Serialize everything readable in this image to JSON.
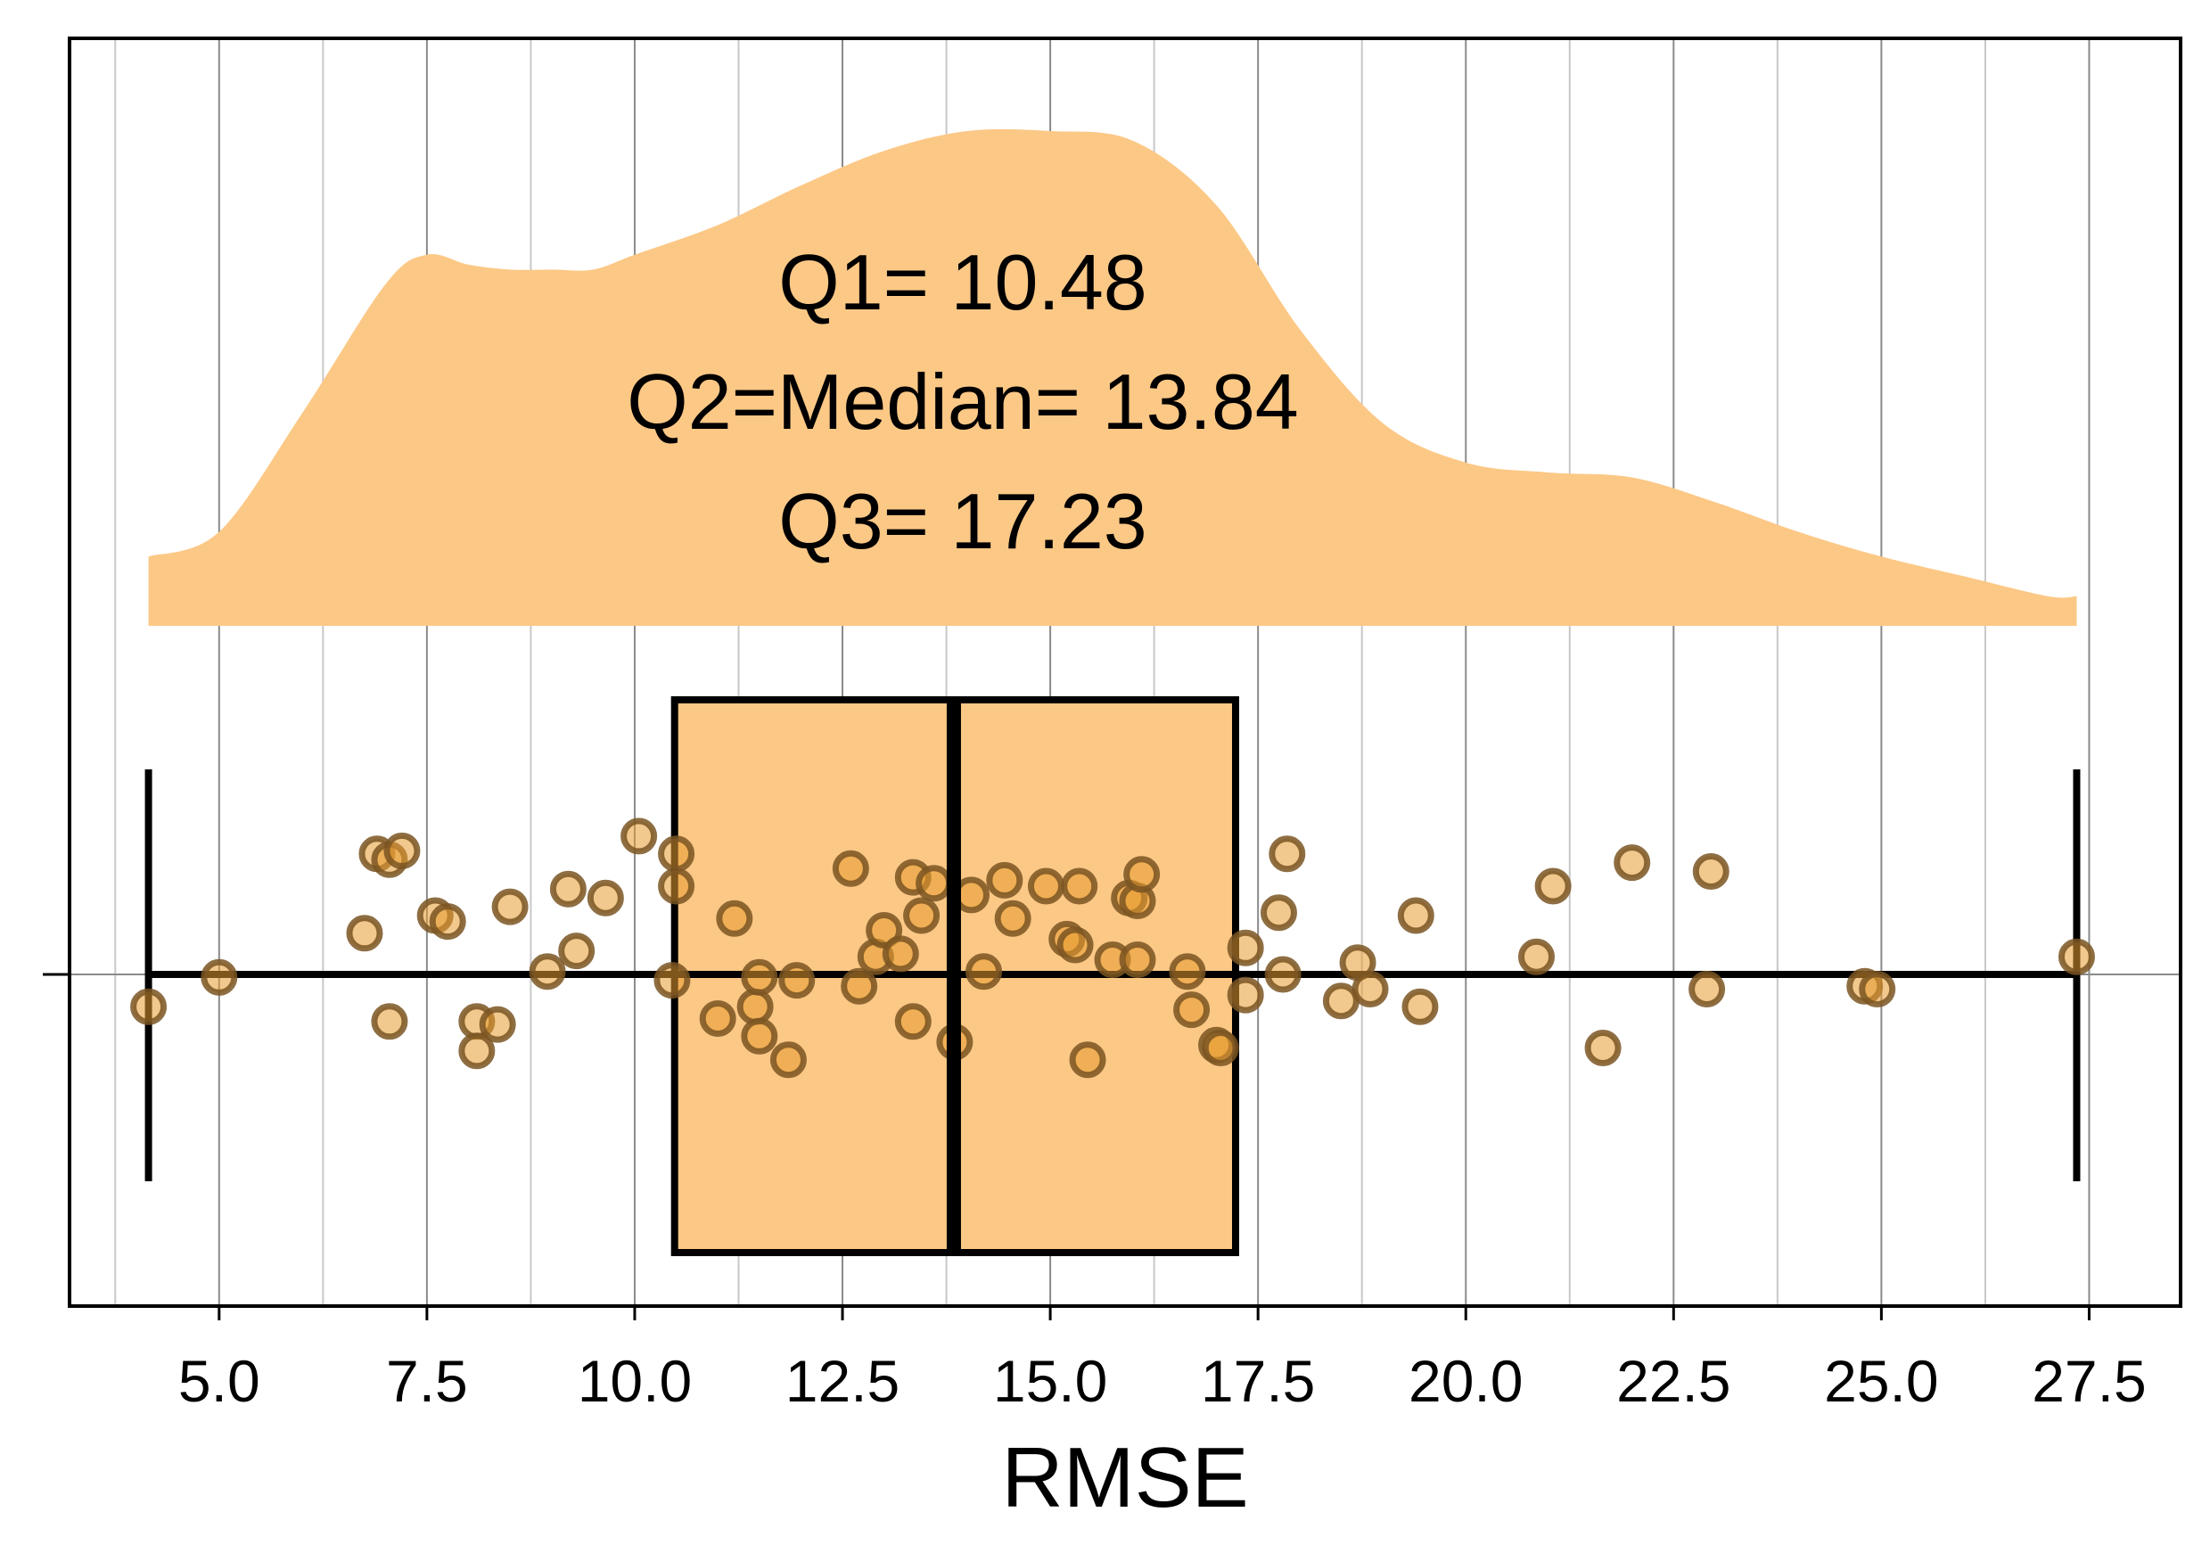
{
  "chart_data": {
    "type": "raincloud",
    "xlabel": "RMSE",
    "xlim": [
      3.2,
      28.6
    ],
    "xticks": [
      5.0,
      7.5,
      10.0,
      12.5,
      15.0,
      17.5,
      20.0,
      22.5,
      25.0,
      27.5
    ],
    "xtick_labels": [
      "5.0",
      "7.5",
      "10.0",
      "12.5",
      "15.0",
      "17.5",
      "20.0",
      "22.5",
      "25.0",
      "27.5"
    ],
    "minor_gridlines": [
      3.75,
      6.25,
      8.75,
      11.25,
      13.75,
      16.25,
      18.75,
      21.25,
      23.75,
      26.25
    ],
    "grid": "vertical",
    "colors": {
      "fill": "#fcc886",
      "point_fill": "#e59a30",
      "point_edge": "#7a5522",
      "box_edge": "#000000"
    },
    "annotations": [
      "Q1= 10.48",
      "Q2=Median= 13.84",
      "Q3= 17.23"
    ],
    "box": {
      "whisker_low": 4.15,
      "q1": 10.48,
      "median": 13.84,
      "q3": 17.23,
      "whisker_high": 27.35
    },
    "density": {
      "x": [
        4.15,
        5.0,
        6.0,
        7.0,
        7.5,
        8.0,
        8.5,
        9.0,
        9.5,
        10.0,
        11.0,
        12.0,
        13.0,
        14.0,
        15.0,
        16.0,
        17.0,
        18.0,
        19.0,
        20.0,
        21.0,
        22.0,
        23.0,
        24.0,
        25.0,
        26.0,
        27.0,
        27.35
      ],
      "y": [
        0.14,
        0.19,
        0.43,
        0.69,
        0.75,
        0.73,
        0.72,
        0.72,
        0.72,
        0.75,
        0.81,
        0.89,
        0.96,
        1.0,
        1.0,
        0.98,
        0.85,
        0.6,
        0.41,
        0.33,
        0.31,
        0.3,
        0.25,
        0.19,
        0.14,
        0.1,
        0.06,
        0.06
      ]
    },
    "points": [
      {
        "x": 4.15,
        "y": -0.11
      },
      {
        "x": 5.0,
        "y": -0.01
      },
      {
        "x": 6.75,
        "y": 0.14
      },
      {
        "x": 6.9,
        "y": 0.41
      },
      {
        "x": 7.05,
        "y": 0.39
      },
      {
        "x": 7.2,
        "y": 0.42
      },
      {
        "x": 7.05,
        "y": -0.16
      },
      {
        "x": 7.6,
        "y": 0.2
      },
      {
        "x": 7.75,
        "y": 0.18
      },
      {
        "x": 8.1,
        "y": -0.16
      },
      {
        "x": 8.35,
        "y": -0.17
      },
      {
        "x": 8.1,
        "y": -0.26
      },
      {
        "x": 8.5,
        "y": 0.23
      },
      {
        "x": 8.95,
        "y": 0.01
      },
      {
        "x": 9.2,
        "y": 0.29
      },
      {
        "x": 9.3,
        "y": 0.08
      },
      {
        "x": 9.65,
        "y": 0.26
      },
      {
        "x": 10.05,
        "y": 0.47
      },
      {
        "x": 10.5,
        "y": 0.41
      },
      {
        "x": 10.5,
        "y": 0.3
      },
      {
        "x": 10.45,
        "y": -0.02
      },
      {
        "x": 11.0,
        "y": -0.15
      },
      {
        "x": 11.2,
        "y": 0.19
      },
      {
        "x": 11.45,
        "y": -0.11
      },
      {
        "x": 11.5,
        "y": -0.21
      },
      {
        "x": 11.5,
        "y": -0.01
      },
      {
        "x": 11.85,
        "y": -0.29
      },
      {
        "x": 11.95,
        "y": -0.02
      },
      {
        "x": 12.6,
        "y": 0.36
      },
      {
        "x": 12.7,
        "y": -0.04
      },
      {
        "x": 12.9,
        "y": 0.06
      },
      {
        "x": 13.0,
        "y": 0.15
      },
      {
        "x": 13.2,
        "y": 0.07
      },
      {
        "x": 13.35,
        "y": -0.16
      },
      {
        "x": 13.35,
        "y": 0.33
      },
      {
        "x": 13.45,
        "y": 0.2
      },
      {
        "x": 13.6,
        "y": 0.31
      },
      {
        "x": 13.85,
        "y": -0.23
      },
      {
        "x": 14.05,
        "y": 0.27
      },
      {
        "x": 14.2,
        "y": 0.01
      },
      {
        "x": 14.45,
        "y": 0.32
      },
      {
        "x": 14.55,
        "y": 0.19
      },
      {
        "x": 14.95,
        "y": 0.3
      },
      {
        "x": 15.2,
        "y": 0.12
      },
      {
        "x": 15.3,
        "y": 0.1
      },
      {
        "x": 15.35,
        "y": 0.3
      },
      {
        "x": 15.45,
        "y": -0.29
      },
      {
        "x": 15.75,
        "y": 0.05
      },
      {
        "x": 15.95,
        "y": 0.26
      },
      {
        "x": 16.05,
        "y": 0.25
      },
      {
        "x": 16.1,
        "y": 0.34
      },
      {
        "x": 16.05,
        "y": 0.05
      },
      {
        "x": 16.65,
        "y": 0.01
      },
      {
        "x": 16.7,
        "y": -0.12
      },
      {
        "x": 17.0,
        "y": -0.24
      },
      {
        "x": 17.05,
        "y": -0.25
      },
      {
        "x": 17.35,
        "y": 0.09
      },
      {
        "x": 17.35,
        "y": -0.07
      },
      {
        "x": 17.75,
        "y": 0.21
      },
      {
        "x": 17.8,
        "y": 0.0
      },
      {
        "x": 17.85,
        "y": 0.41
      },
      {
        "x": 18.5,
        "y": -0.09
      },
      {
        "x": 18.7,
        "y": 0.04
      },
      {
        "x": 18.85,
        "y": -0.05
      },
      {
        "x": 19.4,
        "y": 0.2
      },
      {
        "x": 19.45,
        "y": -0.11
      },
      {
        "x": 20.85,
        "y": 0.06
      },
      {
        "x": 21.05,
        "y": 0.3
      },
      {
        "x": 21.65,
        "y": -0.25
      },
      {
        "x": 22.0,
        "y": 0.38
      },
      {
        "x": 22.9,
        "y": -0.05
      },
      {
        "x": 22.95,
        "y": 0.35
      },
      {
        "x": 24.8,
        "y": -0.04
      },
      {
        "x": 24.95,
        "y": -0.05
      },
      {
        "x": 27.35,
        "y": 0.06
      }
    ]
  }
}
